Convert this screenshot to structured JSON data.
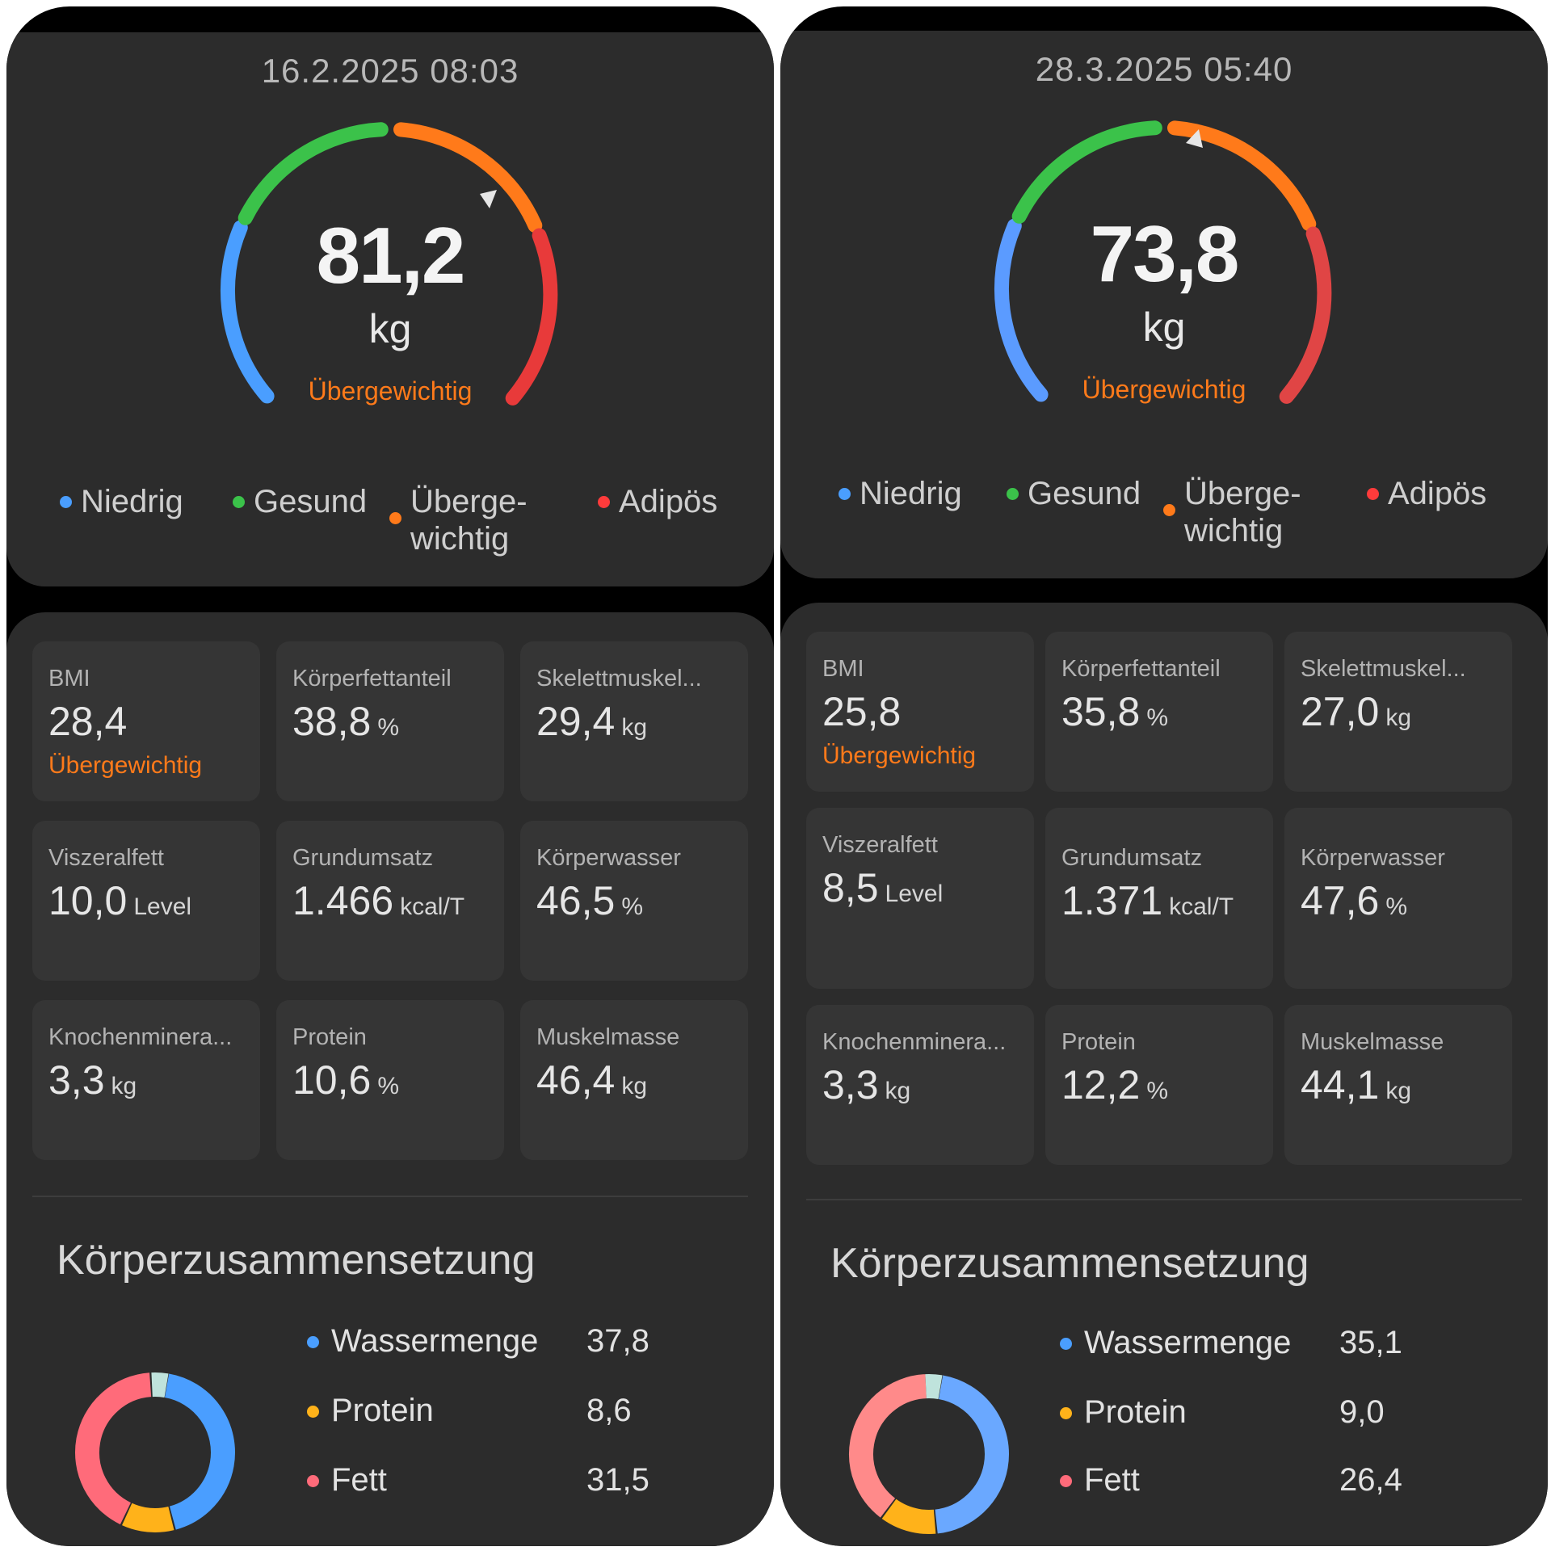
{
  "panels": [
    {
      "date": "16.2.2025 08:03",
      "weight": "81,2",
      "unit": "kg",
      "status": "Übergewichtig",
      "legend": [
        {
          "label": "Niedrig",
          "color": "#4a9eff"
        },
        {
          "label": "Gesund",
          "color": "#3bc24a"
        },
        {
          "label": "Überge-\nwichtig",
          "color": "#ff7a1a"
        },
        {
          "label": "Adipös",
          "color": "#ff3b3b"
        }
      ],
      "metrics": [
        {
          "label": "BMI",
          "value": "28,4",
          "unit": "",
          "status": "Übergewichtig"
        },
        {
          "label": "Körperfettanteil",
          "value": "38,8",
          "unit": "%",
          "status": ""
        },
        {
          "label": "Skelettmuskel...",
          "value": "29,4",
          "unit": "kg",
          "status": ""
        },
        {
          "label": "Viszeralfett",
          "value": "10,0",
          "unit": "Level",
          "status": ""
        },
        {
          "label": "Grundumsatz",
          "value": "1.466",
          "unit": "kcal/T",
          "status": ""
        },
        {
          "label": "Körperwasser",
          "value": "46,5",
          "unit": "%",
          "status": ""
        },
        {
          "label": "Knochenminera...",
          "value": "3,3",
          "unit": "kg",
          "status": ""
        },
        {
          "label": "Protein",
          "value": "10,6",
          "unit": "%",
          "status": ""
        },
        {
          "label": "Muskelmasse",
          "value": "46,4",
          "unit": "kg",
          "status": ""
        }
      ],
      "composition_title": "Körperzusammensetzung",
      "composition": [
        {
          "label": "Wassermenge",
          "value": "37,8",
          "color": "#4a9eff"
        },
        {
          "label": "Protein",
          "value": "8,6",
          "color": "#ffb21a"
        },
        {
          "label": "Fett",
          "value": "31,5",
          "color": "#ff6b7a"
        }
      ]
    },
    {
      "date": "28.3.2025 05:40",
      "weight": "73,8",
      "unit": "kg",
      "status": "Übergewichtig",
      "legend": [
        {
          "label": "Niedrig",
          "color": "#4a9eff"
        },
        {
          "label": "Gesund",
          "color": "#3bc24a"
        },
        {
          "label": "Überge-\nwichtig",
          "color": "#ff7a1a"
        },
        {
          "label": "Adipös",
          "color": "#ff3b3b"
        }
      ],
      "metrics": [
        {
          "label": "BMI",
          "value": "25,8",
          "unit": "",
          "status": "Übergewichtig"
        },
        {
          "label": "Körperfettanteil",
          "value": "35,8",
          "unit": "%",
          "status": ""
        },
        {
          "label": "Skelettmuskel...",
          "value": "27,0",
          "unit": "kg",
          "status": ""
        },
        {
          "label": "Viszeralfett",
          "value": "8,5",
          "unit": "Level",
          "status": ""
        },
        {
          "label": "Grundumsatz",
          "value": "1.371",
          "unit": "kcal/T",
          "status": ""
        },
        {
          "label": "Körperwasser",
          "value": "47,6",
          "unit": "%",
          "status": ""
        },
        {
          "label": "Knochenminera...",
          "value": "3,3",
          "unit": "kg",
          "status": ""
        },
        {
          "label": "Protein",
          "value": "12,2",
          "unit": "%",
          "status": ""
        },
        {
          "label": "Muskelmasse",
          "value": "44,1",
          "unit": "kg",
          "status": ""
        }
      ],
      "composition_title": "Körperzusammensetzung",
      "composition": [
        {
          "label": "Wassermenge",
          "value": "35,1",
          "color": "#4a9eff"
        },
        {
          "label": "Protein",
          "value": "9,0",
          "color": "#ffb21a"
        },
        {
          "label": "Fett",
          "value": "26,4",
          "color": "#ff6b7a"
        }
      ]
    }
  ]
}
